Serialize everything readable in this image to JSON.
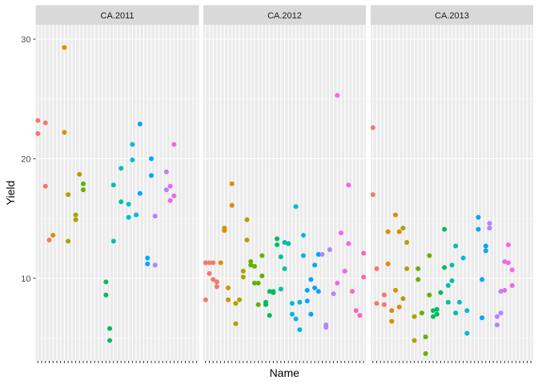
{
  "chart_data": {
    "type": "scatter",
    "xlabel": "Name",
    "ylabel": "Yield",
    "ylim": [
      3.1,
      31.2
    ],
    "y_ticks": [
      10,
      20,
      30
    ],
    "grid": true,
    "legend": "none",
    "facets": [
      {
        "label": "CA.2011",
        "points": [
          {
            "x": 1,
            "y": 23.2
          },
          {
            "x": 1,
            "y": 22.1
          },
          {
            "x": 3,
            "y": 23.0
          },
          {
            "x": 3,
            "y": 17.7
          },
          {
            "x": 4,
            "y": 13.2
          },
          {
            "x": 5,
            "y": 13.6
          },
          {
            "x": 8,
            "y": 29.3
          },
          {
            "x": 8,
            "y": 22.2
          },
          {
            "x": 9,
            "y": 17.0
          },
          {
            "x": 9,
            "y": 13.1
          },
          {
            "x": 11,
            "y": 15.3
          },
          {
            "x": 11,
            "y": 14.9
          },
          {
            "x": 12,
            "y": 18.7
          },
          {
            "x": 13,
            "y": 17.9
          },
          {
            "x": 13,
            "y": 17.4
          },
          {
            "x": 19,
            "y": 9.7
          },
          {
            "x": 19,
            "y": 8.6
          },
          {
            "x": 20,
            "y": 5.8
          },
          {
            "x": 20,
            "y": 4.8
          },
          {
            "x": 21,
            "y": 17.8
          },
          {
            "x": 21,
            "y": 13.1
          },
          {
            "x": 23,
            "y": 19.2
          },
          {
            "x": 23,
            "y": 16.4
          },
          {
            "x": 25,
            "y": 16.2
          },
          {
            "x": 25,
            "y": 15.1
          },
          {
            "x": 26,
            "y": 21.2
          },
          {
            "x": 26,
            "y": 19.9
          },
          {
            "x": 27,
            "y": 15.3
          },
          {
            "x": 28,
            "y": 22.9
          },
          {
            "x": 28,
            "y": 17.1
          },
          {
            "x": 30,
            "y": 11.7
          },
          {
            "x": 30,
            "y": 11.2
          },
          {
            "x": 31,
            "y": 18.6
          },
          {
            "x": 31,
            "y": 20.0
          },
          {
            "x": 32,
            "y": 15.2
          },
          {
            "x": 32,
            "y": 11.1
          },
          {
            "x": 35,
            "y": 18.9
          },
          {
            "x": 35,
            "y": 17.4
          },
          {
            "x": 36,
            "y": 17.7
          },
          {
            "x": 36,
            "y": 16.5
          },
          {
            "x": 37,
            "y": 21.2
          },
          {
            "x": 37,
            "y": 16.9
          }
        ]
      },
      {
        "label": "CA.2012",
        "points": [
          {
            "x": 1,
            "y": 11.3
          },
          {
            "x": 1,
            "y": 8.2
          },
          {
            "x": 2,
            "y": 11.3
          },
          {
            "x": 2,
            "y": 10.4
          },
          {
            "x": 3,
            "y": 11.3
          },
          {
            "x": 3,
            "y": 9.9
          },
          {
            "x": 4,
            "y": 9.3
          },
          {
            "x": 4,
            "y": 9.7
          },
          {
            "x": 5,
            "y": 11.3
          },
          {
            "x": 6,
            "y": 14.2
          },
          {
            "x": 6,
            "y": 14.0
          },
          {
            "x": 7,
            "y": 9.2
          },
          {
            "x": 7,
            "y": 8.2
          },
          {
            "x": 8,
            "y": 17.9
          },
          {
            "x": 8,
            "y": 16.1
          },
          {
            "x": 9,
            "y": 7.9
          },
          {
            "x": 9,
            "y": 6.2
          },
          {
            "x": 10,
            "y": 8.2
          },
          {
            "x": 11,
            "y": 10.6
          },
          {
            "x": 11,
            "y": 10.1
          },
          {
            "x": 12,
            "y": 14.9
          },
          {
            "x": 12,
            "y": 13.2
          },
          {
            "x": 13,
            "y": 11.4
          },
          {
            "x": 13,
            "y": 11.1
          },
          {
            "x": 14,
            "y": 11.0
          },
          {
            "x": 14,
            "y": 9.6
          },
          {
            "x": 15,
            "y": 9.6
          },
          {
            "x": 15,
            "y": 7.8
          },
          {
            "x": 16,
            "y": 11.9
          },
          {
            "x": 16,
            "y": 10.2
          },
          {
            "x": 17,
            "y": 8.0
          },
          {
            "x": 17,
            "y": 7.8
          },
          {
            "x": 18,
            "y": 8.9
          },
          {
            "x": 18,
            "y": 6.9
          },
          {
            "x": 19,
            "y": 8.8
          },
          {
            "x": 19,
            "y": 8.9
          },
          {
            "x": 20,
            "y": 13.3
          },
          {
            "x": 20,
            "y": 12.8
          },
          {
            "x": 21,
            "y": 11.8
          },
          {
            "x": 21,
            "y": 9.1
          },
          {
            "x": 22,
            "y": 13.0
          },
          {
            "x": 22,
            "y": 10.8
          },
          {
            "x": 23,
            "y": 12.9
          },
          {
            "x": 23,
            "y": 12.9
          },
          {
            "x": 24,
            "y": 7.9
          },
          {
            "x": 24,
            "y": 7.0
          },
          {
            "x": 25,
            "y": 16.0
          },
          {
            "x": 25,
            "y": 6.6
          },
          {
            "x": 26,
            "y": 8.0
          },
          {
            "x": 26,
            "y": 5.7
          },
          {
            "x": 27,
            "y": 13.6
          },
          {
            "x": 27,
            "y": 11.9
          },
          {
            "x": 28,
            "y": 8.1
          },
          {
            "x": 28,
            "y": 9.0
          },
          {
            "x": 29,
            "y": 9.9
          },
          {
            "x": 29,
            "y": 7.0
          },
          {
            "x": 30,
            "y": 11.1
          },
          {
            "x": 30,
            "y": 9.2
          },
          {
            "x": 31,
            "y": 12.0
          },
          {
            "x": 31,
            "y": 8.9
          },
          {
            "x": 32,
            "y": 12.0
          },
          {
            "x": 33,
            "y": 6.1
          },
          {
            "x": 33,
            "y": 5.9
          },
          {
            "x": 34,
            "y": 12.4
          },
          {
            "x": 35,
            "y": 8.7
          },
          {
            "x": 36,
            "y": 25.3
          },
          {
            "x": 36,
            "y": 9.6
          },
          {
            "x": 37,
            "y": 13.8
          },
          {
            "x": 38,
            "y": 10.6
          },
          {
            "x": 39,
            "y": 17.8
          },
          {
            "x": 39,
            "y": 12.9
          },
          {
            "x": 40,
            "y": 8.9
          },
          {
            "x": 41,
            "y": 7.3
          },
          {
            "x": 42,
            "y": 6.9
          },
          {
            "x": 43,
            "y": 12.1
          },
          {
            "x": 43,
            "y": 10.1
          }
        ]
      },
      {
        "label": "CA.2013",
        "points": [
          {
            "x": 1,
            "y": 22.6
          },
          {
            "x": 1,
            "y": 17.0
          },
          {
            "x": 2,
            "y": 10.8
          },
          {
            "x": 2,
            "y": 7.9
          },
          {
            "x": 4,
            "y": 8.6
          },
          {
            "x": 4,
            "y": 7.8
          },
          {
            "x": 5,
            "y": 11.2
          },
          {
            "x": 5,
            "y": 13.9
          },
          {
            "x": 6,
            "y": 6.4
          },
          {
            "x": 6,
            "y": 7.3
          },
          {
            "x": 7,
            "y": 15.3
          },
          {
            "x": 7,
            "y": 9.0
          },
          {
            "x": 8,
            "y": 13.9
          },
          {
            "x": 8,
            "y": 7.6
          },
          {
            "x": 9,
            "y": 14.2
          },
          {
            "x": 9,
            "y": 8.3
          },
          {
            "x": 10,
            "y": 13.0
          },
          {
            "x": 10,
            "y": 10.8
          },
          {
            "x": 12,
            "y": 6.8
          },
          {
            "x": 12,
            "y": 4.8
          },
          {
            "x": 13,
            "y": 10.8
          },
          {
            "x": 13,
            "y": 9.9
          },
          {
            "x": 14,
            "y": 7.1
          },
          {
            "x": 15,
            "y": 5.1
          },
          {
            "x": 15,
            "y": 3.7
          },
          {
            "x": 16,
            "y": 11.9
          },
          {
            "x": 16,
            "y": 8.6
          },
          {
            "x": 17,
            "y": 6.8
          },
          {
            "x": 17,
            "y": 7.3
          },
          {
            "x": 18,
            "y": 7.4
          },
          {
            "x": 18,
            "y": 7.0
          },
          {
            "x": 19,
            "y": 8.8
          },
          {
            "x": 20,
            "y": 14.1
          },
          {
            "x": 20,
            "y": 10.9
          },
          {
            "x": 21,
            "y": 9.4
          },
          {
            "x": 21,
            "y": 8.0
          },
          {
            "x": 22,
            "y": 9.8
          },
          {
            "x": 22,
            "y": 11.1
          },
          {
            "x": 23,
            "y": 12.7
          },
          {
            "x": 23,
            "y": 7.1
          },
          {
            "x": 24,
            "y": 8.0
          },
          {
            "x": 25,
            "y": 11.7
          },
          {
            "x": 26,
            "y": 7.3
          },
          {
            "x": 26,
            "y": 5.4
          },
          {
            "x": 29,
            "y": 15.1
          },
          {
            "x": 29,
            "y": 14.1
          },
          {
            "x": 30,
            "y": 9.9
          },
          {
            "x": 30,
            "y": 6.7
          },
          {
            "x": 31,
            "y": 12.7
          },
          {
            "x": 31,
            "y": 12.3
          },
          {
            "x": 32,
            "y": 14.6
          },
          {
            "x": 32,
            "y": 14.2
          },
          {
            "x": 34,
            "y": 6.8
          },
          {
            "x": 34,
            "y": 6.1
          },
          {
            "x": 35,
            "y": 7.1
          },
          {
            "x": 35,
            "y": 8.9
          },
          {
            "x": 36,
            "y": 11.4
          },
          {
            "x": 36,
            "y": 9.0
          },
          {
            "x": 37,
            "y": 11.3
          },
          {
            "x": 37,
            "y": 12.8
          },
          {
            "x": 38,
            "y": 9.4
          },
          {
            "x": 38,
            "y": 10.7
          }
        ]
      }
    ]
  }
}
